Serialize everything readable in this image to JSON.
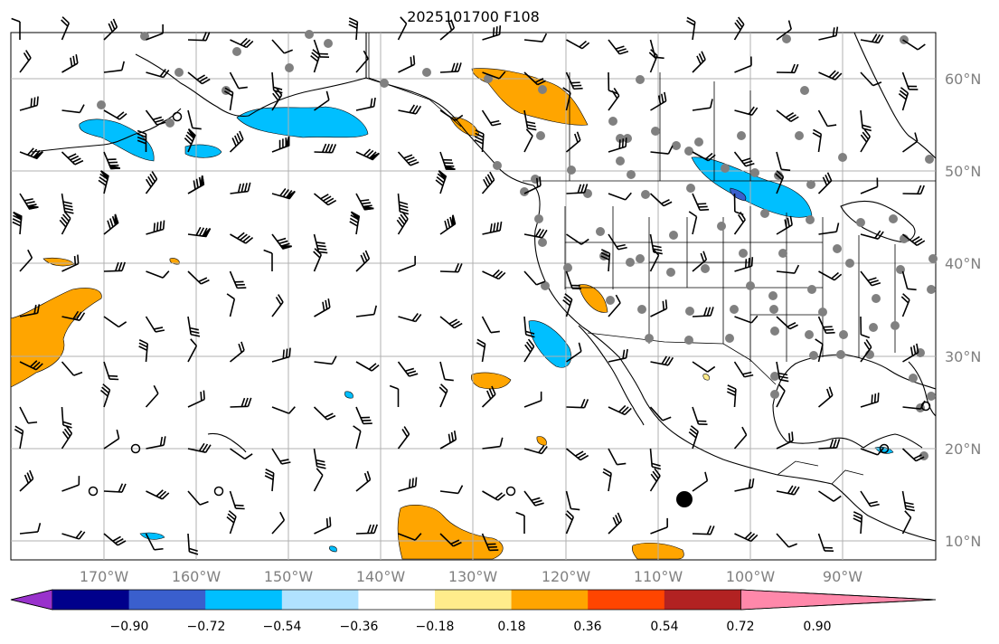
{
  "title": "2025101700 F108",
  "map": {
    "projection": "Plate Carree",
    "lon_range": [
      -180,
      -80
    ],
    "lat_range": [
      8,
      65
    ],
    "gridlines": true,
    "lon_ticks": [
      "170°W",
      "160°W",
      "150°W",
      "140°W",
      "130°W",
      "120°W",
      "110°W",
      "100°W",
      "90°W"
    ],
    "lat_ticks": [
      "60°N",
      "50°N",
      "40°N",
      "30°N",
      "20°N",
      "10°N"
    ]
  },
  "colorbar": {
    "extend": "both",
    "ticks": [
      "−0.90",
      "−0.72",
      "−0.54",
      "−0.36",
      "−0.18",
      "0.18",
      "0.36",
      "0.54",
      "0.72",
      "0.90"
    ],
    "colors": [
      "#9932cc",
      "#00008b",
      "#3a5fcd",
      "#00bfff",
      "#b0e2ff",
      "#ffffff",
      "#ffec8b",
      "#ffa500",
      "#ff4500",
      "#b22222",
      "#ff88aa"
    ]
  },
  "colors": {
    "coast": "#000000",
    "grid": "#b0b0b0",
    "stations": "#808080"
  }
}
